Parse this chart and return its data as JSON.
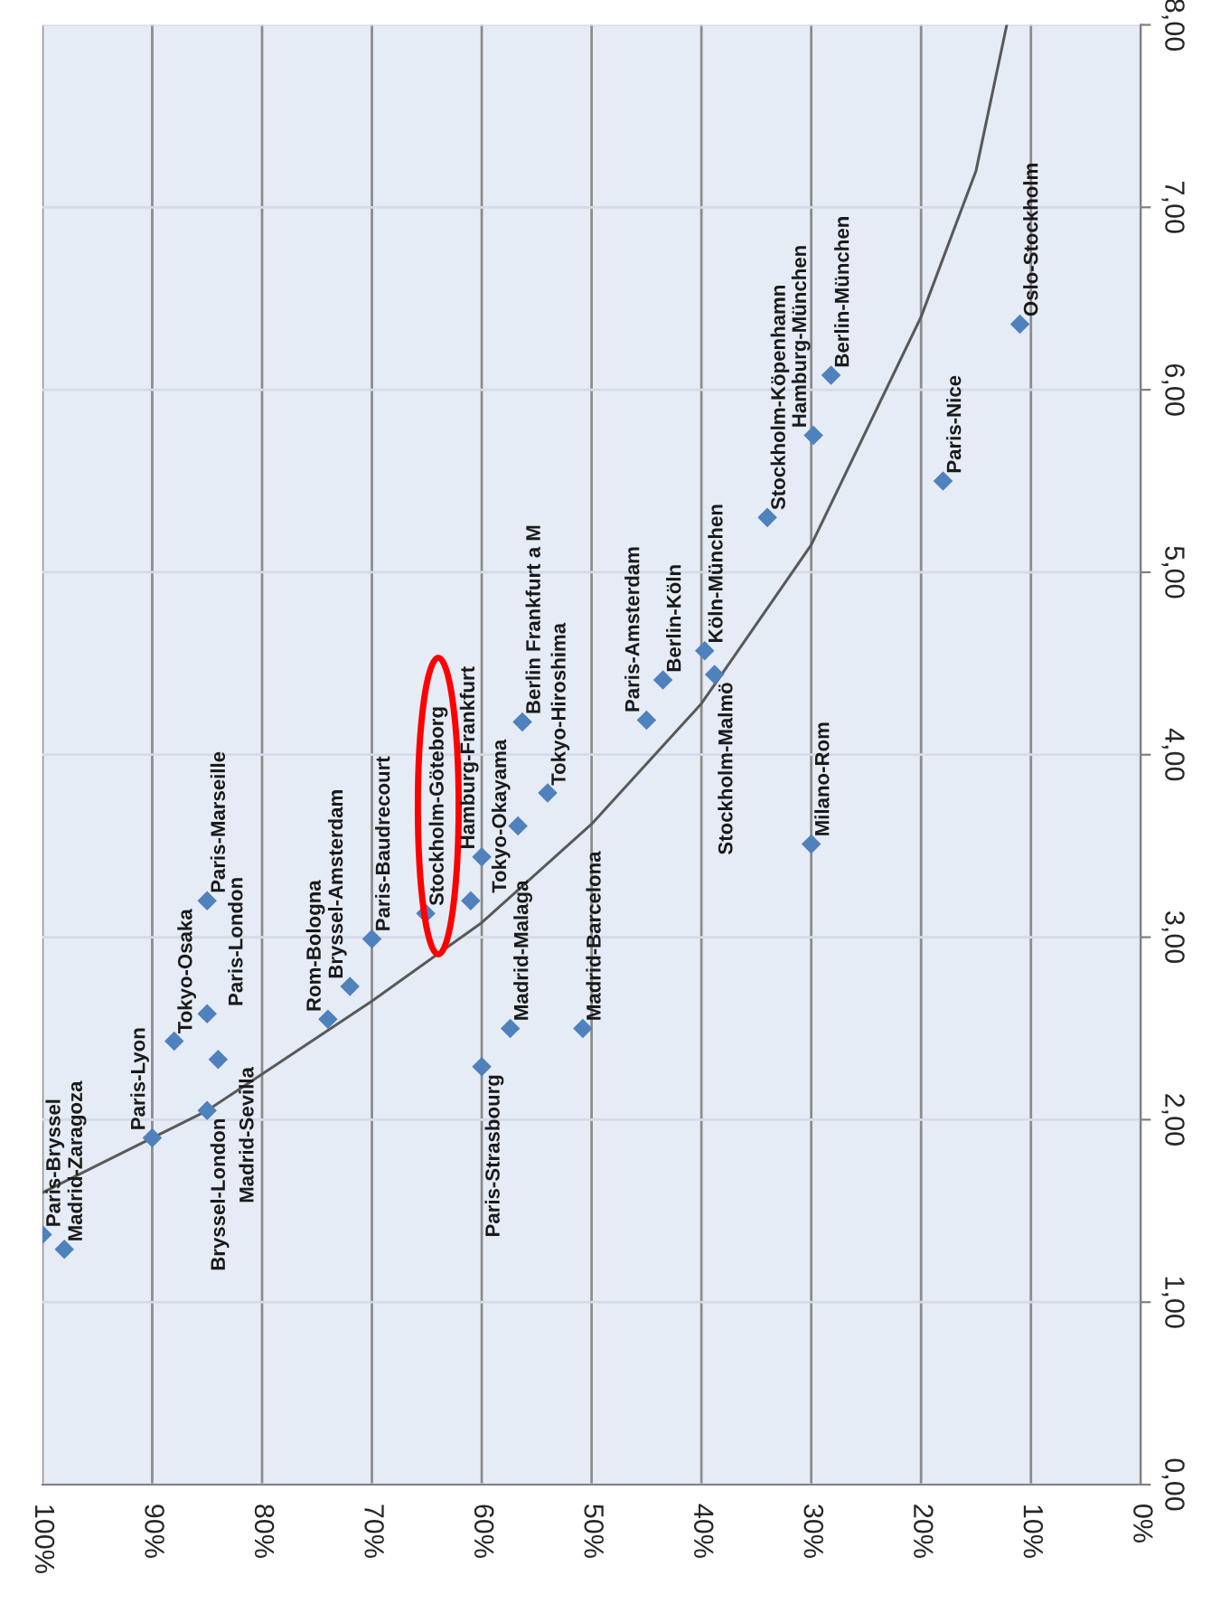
{
  "chart_data": {
    "type": "scatter",
    "xlim": [
      100,
      0
    ],
    "xticks": [
      {
        "value": 100,
        "label": "100%"
      },
      {
        "value": 90,
        "label": "90%"
      },
      {
        "value": 80,
        "label": "80%"
      },
      {
        "value": 70,
        "label": "70%"
      },
      {
        "value": 60,
        "label": "60%"
      },
      {
        "value": 50,
        "label": "50%"
      },
      {
        "value": 40,
        "label": "40%"
      },
      {
        "value": 30,
        "label": "30%"
      },
      {
        "value": 20,
        "label": "20%"
      },
      {
        "value": 10,
        "label": "10%"
      },
      {
        "value": 0,
        "label": "0%"
      }
    ],
    "ylim": [
      0,
      8
    ],
    "yticks": [
      {
        "value": 0,
        "label": "0,00"
      },
      {
        "value": 1,
        "label": "1,00"
      },
      {
        "value": 2,
        "label": "2,00"
      },
      {
        "value": 3,
        "label": "3,00"
      },
      {
        "value": 4,
        "label": "4,00"
      },
      {
        "value": 5,
        "label": "5,00"
      },
      {
        "value": 6,
        "label": "6,00"
      },
      {
        "value": 7,
        "label": "7,00"
      },
      {
        "value": 8,
        "label": "8,00"
      }
    ],
    "grid": true,
    "marker": "diamond",
    "legend": false,
    "series": [
      {
        "type": "line",
        "color": "#595959",
        "marker": "none",
        "line_style": "solid",
        "x": [
          100,
          90,
          85,
          80,
          70,
          60,
          50,
          40,
          30,
          20,
          15,
          12.2
        ],
        "values": [
          1.6,
          1.9,
          2.05,
          2.25,
          2.65,
          3.08,
          3.62,
          4.28,
          5.15,
          6.4,
          7.2,
          8.0
        ]
      },
      {
        "type": "scatter",
        "color": "#4f81bd",
        "x": [
          100,
          98,
          90,
          85,
          88,
          85,
          85,
          84,
          74,
          72,
          70,
          65.1,
          60,
          61,
          60,
          57.4,
          56.3,
          56.7,
          54,
          50.8,
          45,
          43.5,
          39.7,
          38.8,
          34,
          30,
          29.8,
          28.2,
          18,
          11
        ],
        "values": [
          1.37,
          1.29,
          1.9,
          2.05,
          2.43,
          3.2,
          2.58,
          2.33,
          2.55,
          2.73,
          2.99,
          3.13,
          2.29,
          3.2,
          3.44,
          2.5,
          4.18,
          3.61,
          3.79,
          2.5,
          4.19,
          4.41,
          4.57,
          4.44,
          5.3,
          3.51,
          5.75,
          6.08,
          5.5,
          6.36
        ]
      }
    ],
    "annotations": [
      {
        "text": "Paris-Bryssel",
        "x": 100,
        "y": 1.37
      },
      {
        "text": "Madrid-Zaragoza",
        "x": 98,
        "y": 1.29
      },
      {
        "text": "Paris-Lyon",
        "x": 90,
        "y": 1.9
      },
      {
        "text": "Bryssel-London",
        "x": 85,
        "y": 2.05
      },
      {
        "text": "Tokyo-Osaka",
        "x": 88,
        "y": 2.43
      },
      {
        "text": "Paris-Marseille",
        "x": 85,
        "y": 3.2
      },
      {
        "text": "Paris-London",
        "x": 85,
        "y": 2.58
      },
      {
        "text": "Madrid-Sevilla",
        "x": 84,
        "y": 2.33
      },
      {
        "text": "Rom-Bologna",
        "x": 74,
        "y": 2.55
      },
      {
        "text": "Bryssel-Amsterdam",
        "x": 72,
        "y": 2.73
      },
      {
        "text": "Paris-Baudrecourt",
        "x": 70,
        "y": 2.99
      },
      {
        "text": "Stockholm-Göteborg",
        "x": 65.1,
        "y": 3.13
      },
      {
        "text": "Paris-Strasbourg",
        "x": 60,
        "y": 2.29
      },
      {
        "text": "Tokyo-Okayama",
        "x": 61,
        "y": 3.2
      },
      {
        "text": "Hamburg-Frankfurt",
        "x": 60,
        "y": 3.44
      },
      {
        "text": "Madrid-Malaga",
        "x": 57.4,
        "y": 2.5
      },
      {
        "text": "Berlin Frankfurt a M",
        "x": 56.3,
        "y": 4.18
      },
      {
        "text": "Tokyo-Hiroshima",
        "x": 54,
        "y": 3.79
      },
      {
        "text": "Madrid-Barcelona",
        "x": 50.8,
        "y": 2.5
      },
      {
        "text": "Paris-Amsterdam",
        "x": 45,
        "y": 4.19
      },
      {
        "text": "Berlin-Köln",
        "x": 43.5,
        "y": 4.41
      },
      {
        "text": "Köln-München",
        "x": 39.7,
        "y": 4.57
      },
      {
        "text": "Stockholm-Malmö",
        "x": 38.8,
        "y": 4.44
      },
      {
        "text": "Stockholm-Köpenhamn",
        "x": 34,
        "y": 5.3
      },
      {
        "text": "Milano-Rom",
        "x": 30,
        "y": 3.51
      },
      {
        "text": "Hamburg-München",
        "x": 29.8,
        "y": 5.75
      },
      {
        "text": "Berlin-München",
        "x": 28.2,
        "y": 6.08
      },
      {
        "text": "Paris-Nice",
        "x": 18,
        "y": 5.5
      },
      {
        "text": "Oslo-Stockholm",
        "x": 11,
        "y": 6.36
      }
    ]
  }
}
